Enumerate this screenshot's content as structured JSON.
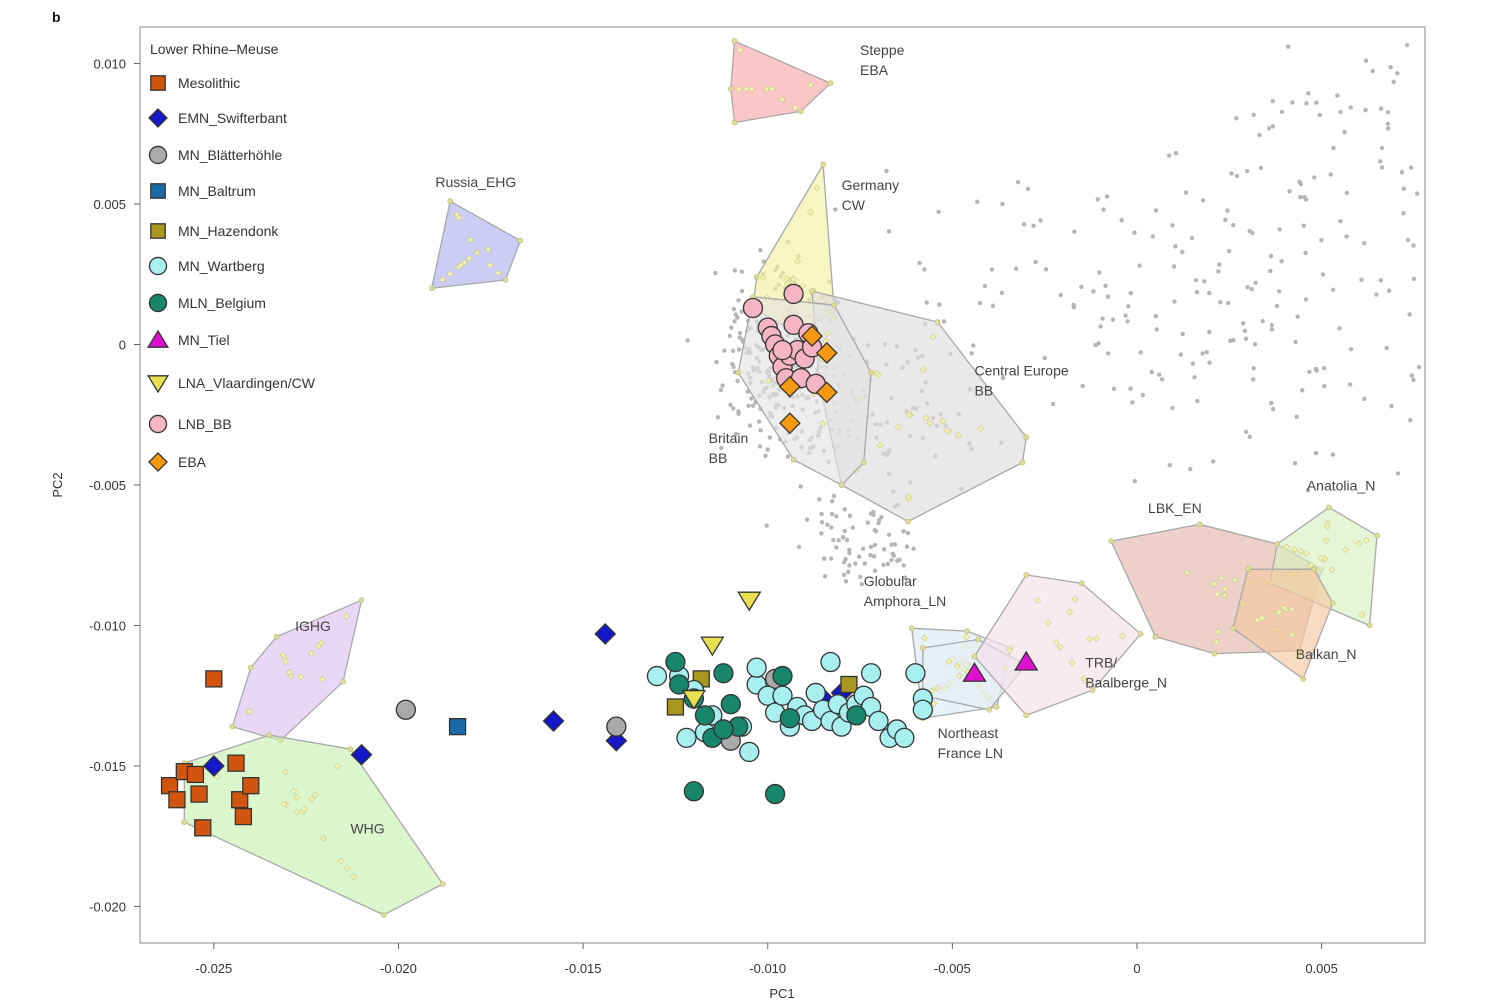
{
  "chart_data": {
    "type": "scatter",
    "title": "",
    "panel_tag": "b",
    "xlabel": "PC1",
    "ylabel": "PC2",
    "xlim": [
      -0.027,
      0.0078
    ],
    "ylim": [
      -0.0213,
      0.0113
    ],
    "x_ticks": [
      {
        "value": -0.025,
        "label": "-0.025"
      },
      {
        "value": -0.02,
        "label": "-0.020"
      },
      {
        "value": -0.015,
        "label": "-0.015"
      },
      {
        "value": -0.01,
        "label": "-0.010"
      },
      {
        "value": -0.005,
        "label": "-0.005"
      },
      {
        "value": 0,
        "label": "0"
      },
      {
        "value": 0.005,
        "label": "0.005"
      }
    ],
    "y_ticks": [
      {
        "value": 0.01,
        "label": "0.010"
      },
      {
        "value": 0.005,
        "label": "0.005"
      },
      {
        "value": 0,
        "label": "0"
      },
      {
        "value": -0.005,
        "label": "-0.005"
      },
      {
        "value": -0.01,
        "label": "-0.010"
      },
      {
        "value": -0.015,
        "label": "-0.015"
      },
      {
        "value": -0.02,
        "label": "-0.020"
      }
    ],
    "legend": {
      "title": "Lower Rhine–Meuse",
      "position": "top-left",
      "entries": [
        {
          "label": "Mesolithic",
          "shape": "square",
          "color": "#D2550F"
        },
        {
          "label": "EMN_Swifterbant",
          "shape": "diamond",
          "color": "#1418C8"
        },
        {
          "label": "MN_Blätterhöhle",
          "shape": "circle",
          "color": "#AAAAAA"
        },
        {
          "label": "MN_Baltrum",
          "shape": "square",
          "color": "#1B6AA8"
        },
        {
          "label": "MN_Hazendonk",
          "shape": "square",
          "color": "#A8961E"
        },
        {
          "label": "MN_Wartberg",
          "shape": "circle",
          "color": "#A8F0F0"
        },
        {
          "label": "MLN_Belgium",
          "shape": "circle",
          "color": "#17866A"
        },
        {
          "label": "MN_Tiel",
          "shape": "triangle-up",
          "color": "#E010D0"
        },
        {
          "label": "LNA_Vlaardingen/CW",
          "shape": "triangle-down",
          "color": "#E8E050"
        },
        {
          "label": "LNB_BB",
          "shape": "circle",
          "color": "#F5B5C5"
        },
        {
          "label": "EBA",
          "shape": "diamond",
          "color": "#F59A10"
        }
      ]
    },
    "reference_regions": [
      {
        "name": "Steppe EBA",
        "label_lines": [
          "Steppe",
          "EBA"
        ],
        "fill": "#F7A8A8",
        "label_at": [
          -0.0075,
          0.0103
        ],
        "hull": [
          [
            -0.0109,
            0.0108
          ],
          [
            -0.0083,
            0.0093
          ],
          [
            -0.0091,
            0.0083
          ],
          [
            -0.0109,
            0.0079
          ],
          [
            -0.011,
            0.0091
          ]
        ]
      },
      {
        "name": "Russia_EHG",
        "label_lines": [
          "Russia_EHG"
        ],
        "fill": "#B0B0F0",
        "label_at": [
          -0.019,
          0.0056
        ],
        "hull": [
          [
            -0.0186,
            0.0051
          ],
          [
            -0.0167,
            0.0037
          ],
          [
            -0.0171,
            0.0023
          ],
          [
            -0.0191,
            0.002
          ]
        ]
      },
      {
        "name": "Germany CW",
        "label_lines": [
          "Germany",
          "CW"
        ],
        "fill": "#F2F0A0",
        "label_at": [
          -0.008,
          0.0055
        ],
        "hull": [
          [
            -0.0085,
            0.0064
          ],
          [
            -0.0082,
            0.0012
          ],
          [
            -0.0092,
            0.0004
          ],
          [
            -0.0104,
            0.0013
          ],
          [
            -0.0103,
            0.0024
          ]
        ]
      },
      {
        "name": "Central Europe BB",
        "label_lines": [
          "Central Europe",
          "BB"
        ],
        "fill": "#DDDDDD",
        "label_at": [
          -0.0044,
          -0.0011
        ],
        "hull": [
          [
            -0.0088,
            0.0019
          ],
          [
            -0.0054,
            0.0008
          ],
          [
            -0.003,
            -0.0033
          ],
          [
            -0.0031,
            -0.0042
          ],
          [
            -0.0062,
            -0.0063
          ],
          [
            -0.008,
            -0.005
          ],
          [
            -0.0086,
            -0.0014
          ]
        ]
      },
      {
        "name": "Britain BB",
        "label_lines": [
          "Britain",
          "BB"
        ],
        "fill": "#E3E3E3",
        "label_at": [
          -0.0116,
          -0.0035
        ],
        "hull": [
          [
            -0.0104,
            0.0017
          ],
          [
            -0.0082,
            0.0014
          ],
          [
            -0.0072,
            -0.001
          ],
          [
            -0.0074,
            -0.0042
          ],
          [
            -0.008,
            -0.005
          ],
          [
            -0.0093,
            -0.0041
          ],
          [
            -0.0108,
            -0.001
          ]
        ]
      },
      {
        "name": "IGHG",
        "label_lines": [
          "IGHG"
        ],
        "fill": "#DCC2F0",
        "label_at": [
          -0.0228,
          -0.0102
        ],
        "hull": [
          [
            -0.0233,
            -0.0104
          ],
          [
            -0.021,
            -0.0091
          ],
          [
            -0.0215,
            -0.012
          ],
          [
            -0.0232,
            -0.0141
          ],
          [
            -0.0245,
            -0.0136
          ],
          [
            -0.024,
            -0.0115
          ]
        ]
      },
      {
        "name": "WHG",
        "label_lines": [
          "WHG"
        ],
        "fill": "#C8F0B0",
        "label_at": [
          -0.0213,
          -0.0174
        ],
        "hull": [
          [
            -0.0258,
            -0.0149
          ],
          [
            -0.0235,
            -0.0139
          ],
          [
            -0.0213,
            -0.0144
          ],
          [
            -0.0188,
            -0.0192
          ],
          [
            -0.0204,
            -0.0203
          ],
          [
            -0.0258,
            -0.017
          ]
        ]
      },
      {
        "name": "Globular Amphora_LN",
        "label_lines": [
          "Globular",
          "Amphora_LN"
        ],
        "fill": "#D8EAF5",
        "label_at": [
          -0.0074,
          -0.0086
        ],
        "hull": [
          [
            -0.0061,
            -0.0101
          ],
          [
            -0.0046,
            -0.0102
          ],
          [
            -0.0034,
            -0.0108
          ],
          [
            -0.0038,
            -0.0129
          ],
          [
            -0.0058,
            -0.0133
          ]
        ]
      },
      {
        "name": "Northeast France LN",
        "label_lines": [
          "Northeast",
          "France LN"
        ],
        "fill": "#E6EEF5",
        "label_at": [
          -0.0054,
          -0.014
        ],
        "hull": [
          [
            -0.0058,
            -0.0108
          ],
          [
            -0.0043,
            -0.0105
          ],
          [
            -0.003,
            -0.0114
          ],
          [
            -0.004,
            -0.013
          ],
          [
            -0.0058,
            -0.0125
          ]
        ]
      },
      {
        "name": "TRB/Baalberge_N",
        "label_lines": [
          "TRB/",
          "Baalberge_N"
        ],
        "fill": "#F5E0E8",
        "label_at": [
          -0.0014,
          -0.0115
        ],
        "hull": [
          [
            -0.003,
            -0.0082
          ],
          [
            -0.0015,
            -0.0085
          ],
          [
            0.0001,
            -0.0103
          ],
          [
            -0.0012,
            -0.0123
          ],
          [
            -0.003,
            -0.0132
          ],
          [
            -0.0044,
            -0.0111
          ]
        ]
      },
      {
        "name": "LBK_EN",
        "label_lines": [
          "LBK_EN"
        ],
        "fill": "#E3B8AC",
        "label_at": [
          0.0003,
          -0.006
        ],
        "hull": [
          [
            -0.0007,
            -0.007
          ],
          [
            0.0017,
            -0.0064
          ],
          [
            0.0038,
            -0.0071
          ],
          [
            0.005,
            -0.008
          ],
          [
            0.0044,
            -0.0109
          ],
          [
            0.0021,
            -0.011
          ],
          [
            0.0005,
            -0.0104
          ]
        ]
      },
      {
        "name": "Anatolia_N",
        "label_lines": [
          "Anatolia_N"
        ],
        "fill": "#D8F0C0",
        "label_at": [
          0.0046,
          -0.0052
        ],
        "hull": [
          [
            0.0052,
            -0.0058
          ],
          [
            0.0065,
            -0.0068
          ],
          [
            0.0063,
            -0.01
          ],
          [
            0.0036,
            -0.0085
          ],
          [
            0.0038,
            -0.0071
          ]
        ]
      },
      {
        "name": "Balkan_N",
        "label_lines": [
          "Balkan_N"
        ],
        "fill": "#F5C8A0",
        "label_at": [
          0.0043,
          -0.0112
        ],
        "hull": [
          [
            0.003,
            -0.008
          ],
          [
            0.0048,
            -0.008
          ],
          [
            0.0053,
            -0.0092
          ],
          [
            0.0045,
            -0.0119
          ],
          [
            0.0026,
            -0.0101
          ]
        ]
      }
    ],
    "series": [
      {
        "name": "Mesolithic",
        "shape": "square",
        "color": "#D2550F",
        "points": [
          [
            -0.025,
            -0.0119
          ],
          [
            -0.0262,
            -0.0157
          ],
          [
            -0.026,
            -0.0162
          ],
          [
            -0.0258,
            -0.0152
          ],
          [
            -0.0255,
            -0.0153
          ],
          [
            -0.0254,
            -0.016
          ],
          [
            -0.0253,
            -0.0172
          ],
          [
            -0.0244,
            -0.0149
          ],
          [
            -0.0243,
            -0.0162
          ],
          [
            -0.0242,
            -0.0168
          ],
          [
            -0.024,
            -0.0157
          ]
        ]
      },
      {
        "name": "EMN_Swifterbant",
        "shape": "diamond",
        "color": "#1418C8",
        "points": [
          [
            -0.025,
            -0.015
          ],
          [
            -0.021,
            -0.0146
          ],
          [
            -0.0158,
            -0.0134
          ],
          [
            -0.0144,
            -0.0103
          ],
          [
            -0.0141,
            -0.0141
          ],
          [
            -0.0085,
            -0.0126
          ],
          [
            -0.008,
            -0.0124
          ]
        ]
      },
      {
        "name": "MN_Blätterhöhle",
        "shape": "circle",
        "color": "#AAAAAA",
        "points": [
          [
            -0.0198,
            -0.013
          ],
          [
            -0.0141,
            -0.0136
          ],
          [
            -0.011,
            -0.0141
          ],
          [
            -0.0098,
            -0.0119
          ]
        ]
      },
      {
        "name": "MN_Baltrum",
        "shape": "square",
        "color": "#1B6AA8",
        "points": [
          [
            -0.0184,
            -0.0136
          ]
        ]
      },
      {
        "name": "MN_Hazendonk",
        "shape": "square",
        "color": "#A8961E",
        "points": [
          [
            -0.0125,
            -0.0129
          ],
          [
            -0.0118,
            -0.0119
          ],
          [
            -0.0078,
            -0.0121
          ]
        ]
      },
      {
        "name": "MN_Wartberg",
        "shape": "circle",
        "color": "#A8F0F0",
        "points": [
          [
            -0.013,
            -0.0118
          ],
          [
            -0.0124,
            -0.0118
          ],
          [
            -0.0122,
            -0.014
          ],
          [
            -0.012,
            -0.0123
          ],
          [
            -0.0117,
            -0.0138
          ],
          [
            -0.0115,
            -0.0132
          ],
          [
            -0.0107,
            -0.0136
          ],
          [
            -0.0105,
            -0.0145
          ],
          [
            -0.0103,
            -0.0121
          ],
          [
            -0.01,
            -0.0125
          ],
          [
            -0.0098,
            -0.0131
          ],
          [
            -0.0096,
            -0.0125
          ],
          [
            -0.0094,
            -0.0136
          ],
          [
            -0.0092,
            -0.0129
          ],
          [
            -0.009,
            -0.0132
          ],
          [
            -0.0088,
            -0.0134
          ],
          [
            -0.0087,
            -0.0124
          ],
          [
            -0.0085,
            -0.013
          ],
          [
            -0.0083,
            -0.0134
          ],
          [
            -0.0081,
            -0.0128
          ],
          [
            -0.008,
            -0.0136
          ],
          [
            -0.0078,
            -0.0131
          ],
          [
            -0.0076,
            -0.0128
          ],
          [
            -0.0074,
            -0.0125
          ],
          [
            -0.0072,
            -0.0129
          ],
          [
            -0.007,
            -0.0134
          ],
          [
            -0.0067,
            -0.014
          ],
          [
            -0.0065,
            -0.0137
          ],
          [
            -0.0063,
            -0.014
          ],
          [
            -0.0058,
            -0.0126
          ],
          [
            -0.0058,
            -0.013
          ],
          [
            -0.0083,
            -0.0113
          ],
          [
            -0.0072,
            -0.0117
          ],
          [
            -0.0103,
            -0.0115
          ],
          [
            -0.006,
            -0.0117
          ]
        ]
      },
      {
        "name": "MLN_Belgium",
        "shape": "circle",
        "color": "#17866A",
        "points": [
          [
            -0.0125,
            -0.0113
          ],
          [
            -0.0124,
            -0.0121
          ],
          [
            -0.012,
            -0.0126
          ],
          [
            -0.0117,
            -0.0132
          ],
          [
            -0.0115,
            -0.014
          ],
          [
            -0.0112,
            -0.0117
          ],
          [
            -0.011,
            -0.0128
          ],
          [
            -0.0108,
            -0.0136
          ],
          [
            -0.012,
            -0.0159
          ],
          [
            -0.0098,
            -0.016
          ],
          [
            -0.0096,
            -0.0118
          ],
          [
            -0.0094,
            -0.0133
          ],
          [
            -0.0112,
            -0.0137
          ],
          [
            -0.0076,
            -0.0132
          ]
        ]
      },
      {
        "name": "MN_Tiel",
        "shape": "triangle-up",
        "color": "#E010D0",
        "points": [
          [
            -0.0044,
            -0.0117
          ],
          [
            -0.003,
            -0.0113
          ]
        ]
      },
      {
        "name": "LNA_Vlaardingen/CW",
        "shape": "triangle-down",
        "color": "#E8E050",
        "points": [
          [
            -0.0105,
            -0.0091
          ],
          [
            -0.0115,
            -0.0107
          ],
          [
            -0.012,
            -0.0126
          ]
        ]
      },
      {
        "name": "LNB_BB",
        "shape": "circle",
        "color": "#F5B5C5",
        "points": [
          [
            -0.0104,
            0.0013
          ],
          [
            -0.01,
            0.0006
          ],
          [
            -0.0099,
            0.0003
          ],
          [
            -0.0098,
            0.0
          ],
          [
            -0.0097,
            -0.0004
          ],
          [
            -0.0096,
            -0.0008
          ],
          [
            -0.0095,
            -0.0012
          ],
          [
            -0.0094,
            -0.0004
          ],
          [
            -0.0093,
            0.0018
          ],
          [
            -0.0093,
            0.0007
          ],
          [
            -0.0092,
            -0.0002
          ],
          [
            -0.0091,
            -0.0012
          ],
          [
            -0.009,
            -0.0005
          ],
          [
            -0.0089,
            0.0004
          ],
          [
            -0.0088,
            -0.0001
          ],
          [
            -0.0087,
            -0.0014
          ],
          [
            -0.0096,
            -0.0002
          ]
        ]
      },
      {
        "name": "EBA",
        "shape": "diamond",
        "color": "#F59A10",
        "points": [
          [
            -0.0094,
            -0.0028
          ],
          [
            -0.0084,
            -0.0017
          ],
          [
            -0.0084,
            -0.0003
          ],
          [
            -0.0088,
            0.0003
          ],
          [
            -0.0094,
            -0.0015
          ]
        ]
      }
    ]
  }
}
